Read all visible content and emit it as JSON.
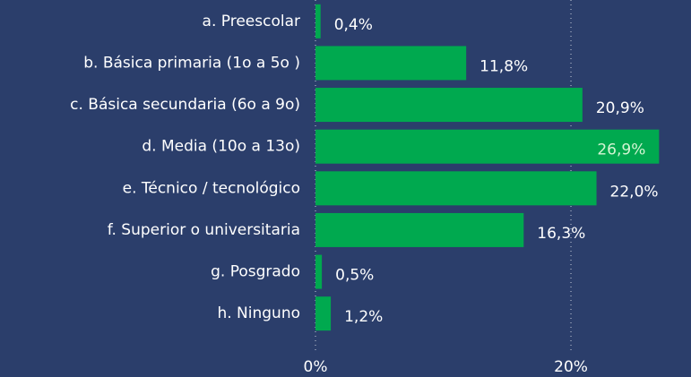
{
  "chart_data": {
    "type": "bar",
    "orientation": "horizontal",
    "categories": [
      "a. Preescolar",
      "b. Básica primaria (1o a 5o )",
      "c. Básica secundaria (6o a 9o)",
      "d. Media (10o a 13o)",
      "e. Técnico / tecnológico",
      "f. Superior o universitaria",
      "g. Posgrado",
      "h. Ninguno"
    ],
    "values": [
      0.4,
      11.8,
      20.9,
      26.9,
      22.0,
      16.3,
      0.5,
      1.2
    ],
    "value_labels": [
      "0,4%",
      "11,8%",
      "20,9%",
      "26,9%",
      "22,0%",
      "16,3%",
      "0,5%",
      "1,2%"
    ],
    "color": "#00a94f",
    "xlim": [
      0,
      29.4
    ],
    "xticks": [
      {
        "value": 0,
        "label": "0%"
      },
      {
        "value": 20,
        "label": "20%"
      }
    ],
    "grid": true
  }
}
